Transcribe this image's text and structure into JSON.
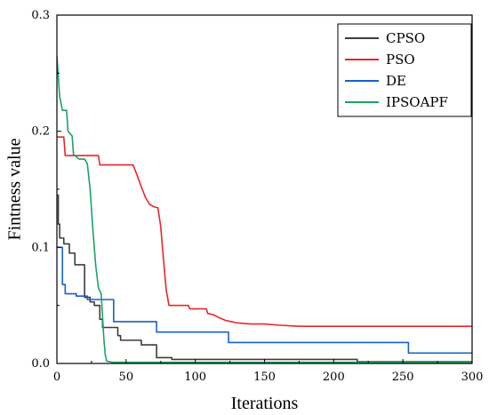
{
  "chart_data": {
    "type": "line",
    "title": "",
    "xlabel": "Iterations",
    "ylabel": "Fintness value",
    "xlim": [
      0,
      300
    ],
    "ylim": [
      0,
      0.3
    ],
    "xticks": [
      0,
      50,
      100,
      150,
      200,
      250,
      300
    ],
    "xtick_labels": [
      "0",
      "50",
      "100",
      "150",
      "200",
      "250",
      "300"
    ],
    "yticks": [
      0,
      0.1,
      0.2,
      0.3
    ],
    "ytick_labels": [
      "0.0",
      "0.1",
      "0.2",
      "0.3"
    ],
    "grid": false,
    "legend_position": "top-right",
    "series": [
      {
        "name": "CPSO",
        "color": "#3c3c3c",
        "step": true,
        "points": [
          [
            0,
            0.145
          ],
          [
            1,
            0.12
          ],
          [
            2,
            0.108
          ],
          [
            5,
            0.103
          ],
          [
            8,
            0.103
          ],
          [
            9,
            0.095
          ],
          [
            13,
            0.085
          ],
          [
            19,
            0.085
          ],
          [
            20,
            0.057
          ],
          [
            24,
            0.053
          ],
          [
            27,
            0.05
          ],
          [
            31,
            0.038
          ],
          [
            33,
            0.031
          ],
          [
            43,
            0.031
          ],
          [
            44,
            0.024
          ],
          [
            46,
            0.02
          ],
          [
            60,
            0.02
          ],
          [
            61,
            0.016
          ],
          [
            71,
            0.016
          ],
          [
            72,
            0.005
          ],
          [
            82,
            0.005
          ],
          [
            83,
            0.0035
          ],
          [
            216,
            0.0035
          ],
          [
            217,
            0.0015
          ],
          [
            300,
            0.0015
          ]
        ]
      },
      {
        "name": "PSO",
        "color": "#e8262c",
        "step": false,
        "points": [
          [
            0,
            0.195
          ],
          [
            5,
            0.195
          ],
          [
            6,
            0.179
          ],
          [
            30,
            0.179
          ],
          [
            31,
            0.171
          ],
          [
            55,
            0.171
          ],
          [
            58,
            0.162
          ],
          [
            61,
            0.152
          ],
          [
            64,
            0.143
          ],
          [
            67,
            0.137
          ],
          [
            70,
            0.135
          ],
          [
            73,
            0.134
          ],
          [
            75,
            0.118
          ],
          [
            77,
            0.09
          ],
          [
            79,
            0.063
          ],
          [
            81,
            0.05
          ],
          [
            95,
            0.05
          ],
          [
            96,
            0.047
          ],
          [
            108,
            0.047
          ],
          [
            109,
            0.043
          ],
          [
            113,
            0.042
          ],
          [
            118,
            0.039
          ],
          [
            122,
            0.037
          ],
          [
            126,
            0.036
          ],
          [
            130,
            0.035
          ],
          [
            140,
            0.034
          ],
          [
            150,
            0.034
          ],
          [
            160,
            0.033
          ],
          [
            175,
            0.032
          ],
          [
            200,
            0.032
          ],
          [
            300,
            0.032
          ]
        ]
      },
      {
        "name": "DE",
        "color": "#1761c9",
        "step": true,
        "points": [
          [
            0,
            0.1
          ],
          [
            4,
            0.068
          ],
          [
            6,
            0.06
          ],
          [
            14,
            0.058
          ],
          [
            22,
            0.055
          ],
          [
            40,
            0.055
          ],
          [
            41,
            0.036
          ],
          [
            71,
            0.036
          ],
          [
            72,
            0.027
          ],
          [
            123,
            0.027
          ],
          [
            124,
            0.018
          ],
          [
            253,
            0.018
          ],
          [
            254,
            0.009
          ],
          [
            300,
            0.009
          ]
        ]
      },
      {
        "name": "IPSOAPF",
        "color": "#1aa364",
        "step": false,
        "points": [
          [
            0,
            0.265
          ],
          [
            2,
            0.23
          ],
          [
            4,
            0.218
          ],
          [
            7,
            0.218
          ],
          [
            8,
            0.2
          ],
          [
            11,
            0.196
          ],
          [
            12,
            0.18
          ],
          [
            16,
            0.176
          ],
          [
            20,
            0.176
          ],
          [
            22,
            0.172
          ],
          [
            24,
            0.15
          ],
          [
            26,
            0.115
          ],
          [
            28,
            0.085
          ],
          [
            30,
            0.065
          ],
          [
            32,
            0.06
          ],
          [
            34,
            0.02
          ],
          [
            35,
            0.007
          ],
          [
            36,
            0.002
          ],
          [
            40,
            0.001
          ],
          [
            300,
            0.001
          ]
        ]
      }
    ]
  }
}
